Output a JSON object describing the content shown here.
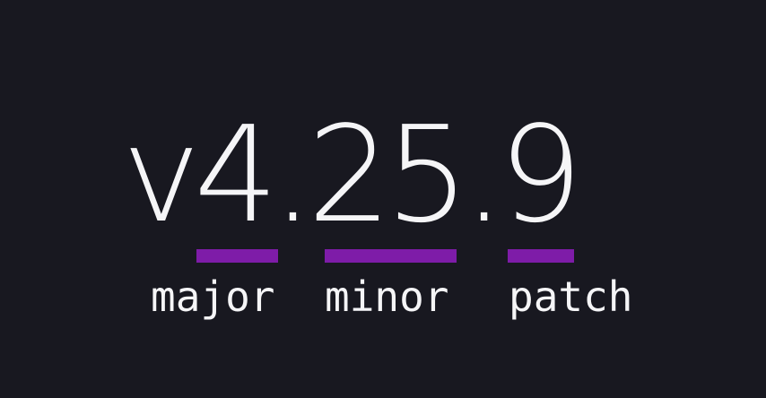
{
  "version": {
    "text": "v4.25.9"
  },
  "annotations": [
    {
      "id": "major",
      "label": "major"
    },
    {
      "id": "minor",
      "label": "minor"
    },
    {
      "id": "patch",
      "label": "patch"
    }
  ],
  "colors": {
    "background": "#181820",
    "text": "#f5f5f7",
    "underline": "#7e1ca8"
  }
}
